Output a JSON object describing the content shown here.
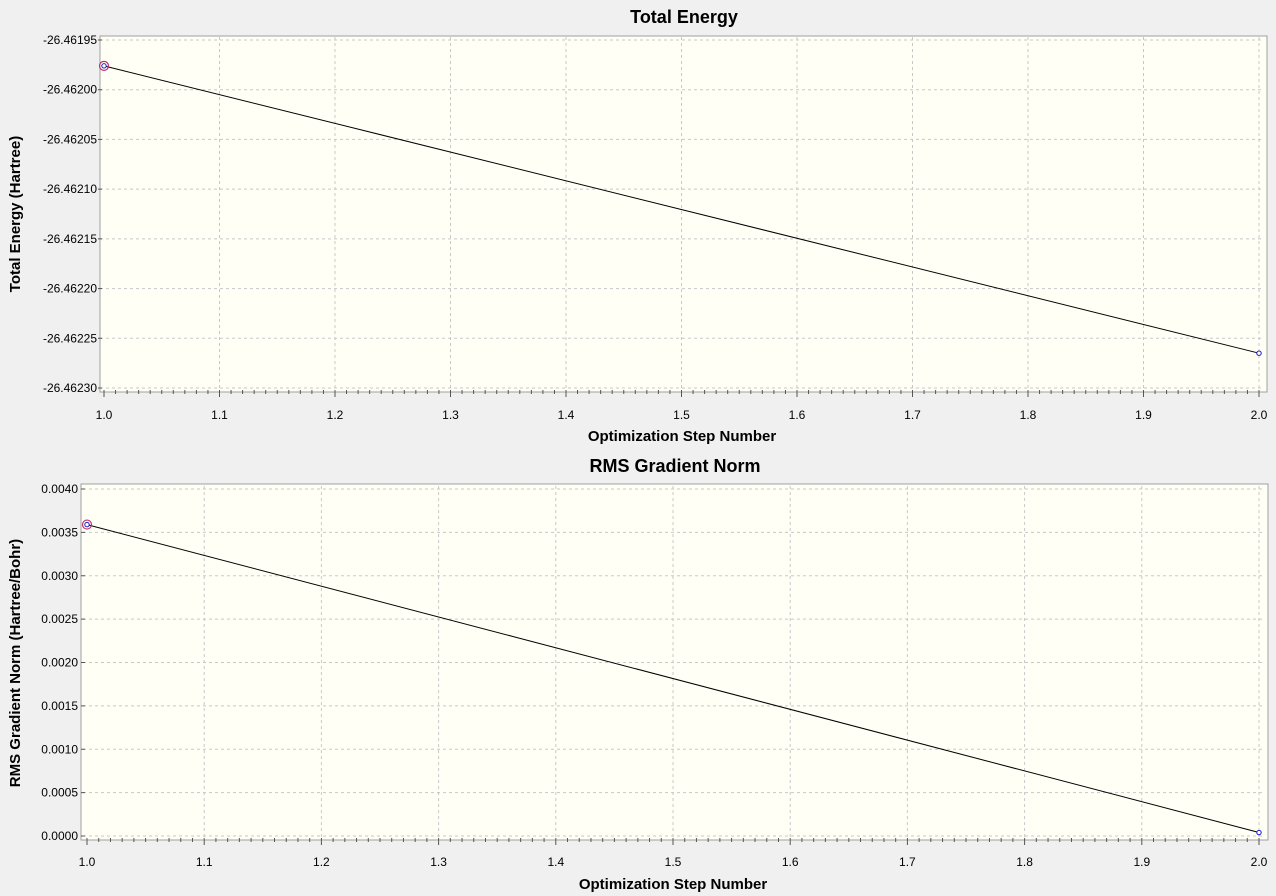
{
  "colors": {
    "plot_background": "#fffff6",
    "window_background": "#f0f0f0",
    "line": "#000000",
    "marker": "#1a1acc",
    "selected_marker": "#c0306a",
    "grid": "#c8c8c8"
  },
  "chart_data": [
    {
      "type": "line",
      "title": "Total Energy",
      "xlabel": "Optimization Step Number",
      "ylabel": "Total Energy (Hartree)",
      "x": [
        1.0,
        2.0
      ],
      "series": [
        {
          "values": [
            -26.461976,
            -26.462265
          ]
        }
      ],
      "selected_index": 0,
      "xlim": [
        1.0,
        2.0
      ],
      "ylim": [
        -26.4623,
        -26.46195
      ],
      "xticks": [
        1.0,
        1.1,
        1.2,
        1.3,
        1.4,
        1.5,
        1.6,
        1.7,
        1.8,
        1.9,
        2.0
      ],
      "xtick_labels": [
        "1.0",
        "1.1",
        "1.2",
        "1.3",
        "1.4",
        "1.5",
        "1.6",
        "1.7",
        "1.8",
        "1.9",
        "2.0"
      ],
      "yticks": [
        -26.46195,
        -26.462,
        -26.46205,
        -26.4621,
        -26.46215,
        -26.4622,
        -26.46225,
        -26.4623
      ],
      "ytick_labels": [
        "-26.46195",
        "-26.46200",
        "-26.46205",
        "-26.46210",
        "-26.46215",
        "-26.46220",
        "-26.46225",
        "-26.46230"
      ],
      "grid": true
    },
    {
      "type": "line",
      "title": "RMS Gradient Norm",
      "xlabel": "Optimization Step Number",
      "ylabel": "RMS Gradient Norm (Hartree/Bohr)",
      "x": [
        1.0,
        2.0
      ],
      "series": [
        {
          "values": [
            0.00359,
            4e-05
          ]
        }
      ],
      "selected_index": 0,
      "xlim": [
        1.0,
        2.0
      ],
      "ylim": [
        0.0,
        0.004
      ],
      "xticks": [
        1.0,
        1.1,
        1.2,
        1.3,
        1.4,
        1.5,
        1.6,
        1.7,
        1.8,
        1.9,
        2.0
      ],
      "xtick_labels": [
        "1.0",
        "1.1",
        "1.2",
        "1.3",
        "1.4",
        "1.5",
        "1.6",
        "1.7",
        "1.8",
        "1.9",
        "2.0"
      ],
      "yticks": [
        0.004,
        0.0035,
        0.003,
        0.0025,
        0.002,
        0.0015,
        0.001,
        0.0005,
        0.0
      ],
      "ytick_labels": [
        "0.0040",
        "0.0035",
        "0.0030",
        "0.0025",
        "0.0020",
        "0.0015",
        "0.0010",
        "0.0005",
        "0.0000"
      ],
      "grid": true
    }
  ]
}
